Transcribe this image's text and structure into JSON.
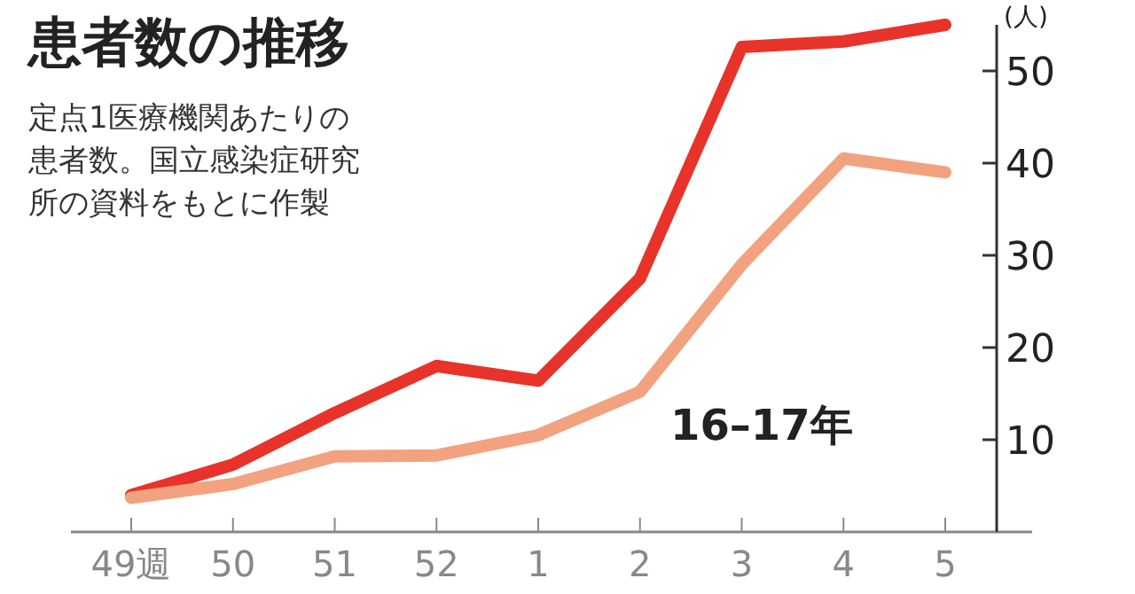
{
  "chart_data": {
    "type": "line",
    "title": "患者数の推移",
    "subtitle": "定点1医療機関あたりの患者数。国立感染症研究所の資料をもとに作製",
    "ylabel": "(人)",
    "categories": [
      "49週",
      "50",
      "51",
      "52",
      "1",
      "2",
      "3",
      "4",
      "5"
    ],
    "series": [
      {
        "name": "16–17年",
        "color": "#e8332a",
        "values": [
          4,
          7.3,
          12.9,
          18,
          16.4,
          27.5,
          52.6,
          53.2,
          55
        ]
      },
      {
        "color": "#f2a27f",
        "values": [
          3.7,
          5.2,
          8.2,
          8.3,
          10.5,
          15.2,
          29,
          40.5,
          39
        ]
      }
    ],
    "ylim": [
      0,
      55
    ],
    "yticks": [
      10,
      20,
      30,
      40,
      50
    ],
    "grid": false,
    "marker": "none",
    "line_style": "solid"
  }
}
